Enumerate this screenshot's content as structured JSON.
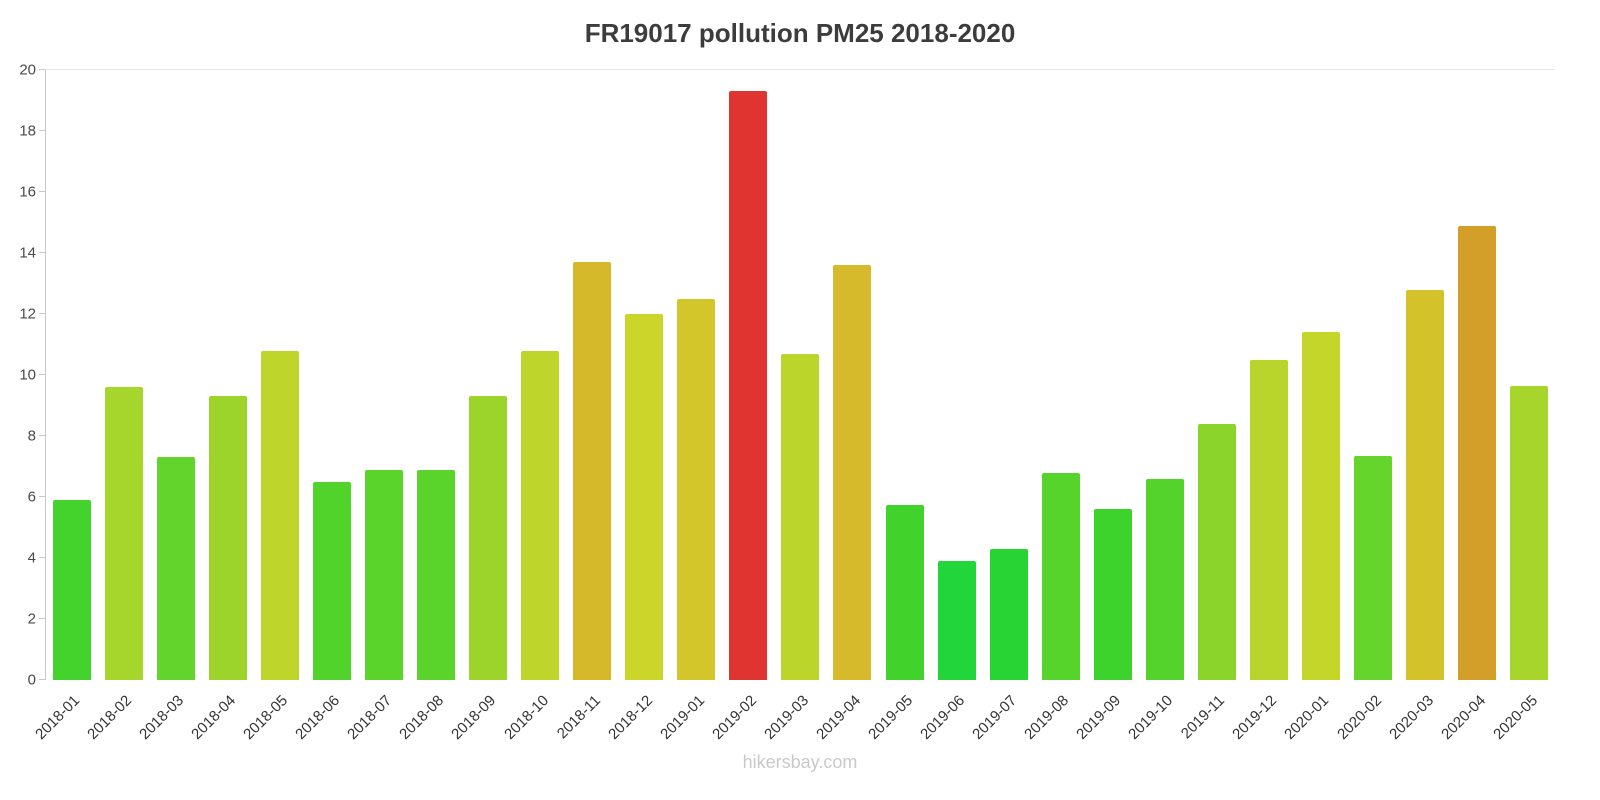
{
  "title": "FR19017 pollution PM25 2018-2020",
  "watermark": "hikersbay.com",
  "axis_color": "#c9c9c9",
  "chart_data": {
    "type": "bar",
    "title": "FR19017 pollution PM25 2018-2020",
    "xlabel": "",
    "ylabel": "",
    "ylim": [
      0,
      20
    ],
    "yticks": [
      0,
      2,
      4,
      6,
      8,
      10,
      12,
      14,
      16,
      18,
      20
    ],
    "grid": false,
    "legend": "none",
    "categories": [
      "2018-01",
      "2018-02",
      "2018-03",
      "2018-04",
      "2018-05",
      "2018-06",
      "2018-07",
      "2018-08",
      "2018-09",
      "2018-10",
      "2018-11",
      "2018-12",
      "2019-01",
      "2019-02",
      "2019-03",
      "2019-04",
      "2019-05",
      "2019-06",
      "2019-07",
      "2019-08",
      "2019-09",
      "2019-10",
      "2019-11",
      "2019-12",
      "2020-01",
      "2020-02",
      "2020-03",
      "2020-04",
      "2020-05"
    ],
    "values": [
      5.9,
      9.6,
      7.3,
      9.3,
      10.8,
      6.5,
      6.9,
      6.9,
      9.3,
      10.8,
      13.7,
      12.0,
      12.5,
      19.3,
      10.7,
      13.6,
      5.75,
      3.9,
      4.3,
      6.8,
      5.6,
      6.6,
      8.4,
      10.5,
      11.4,
      7.35,
      12.8,
      14.9,
      9.65
    ],
    "colors": [
      "#44d22c",
      "#a6d52b",
      "#63d42b",
      "#9dd42b",
      "#bed62b",
      "#52d32b",
      "#5ad42b",
      "#5ad42b",
      "#9dd42b",
      "#bed62b",
      "#d6b92b",
      "#ccd52a",
      "#d2c62b",
      "#df342f",
      "#bcd52b",
      "#d6ba2b",
      "#41d22c",
      "#22d53a",
      "#28d434",
      "#57d42b",
      "#3ed22d",
      "#53d32b",
      "#8bd42b",
      "#b9d52b",
      "#c5d62b",
      "#65d42b",
      "#d4c22b",
      "#d49f28",
      "#a7d52b"
    ]
  }
}
